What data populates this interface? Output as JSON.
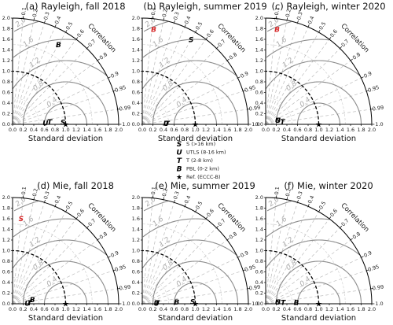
{
  "chart_data": [
    {
      "type": "taylor",
      "title": "(a) Rayleigh, fall 2018",
      "xlabel": "Standard deviation",
      "corr_label": "Correlation",
      "points": [
        {
          "marker": "S",
          "std": 0.95,
          "corr": 0.999,
          "color": "#000000"
        },
        {
          "marker": "T",
          "std": 0.7,
          "corr": 0.998,
          "color": "#000000"
        },
        {
          "marker": "U",
          "std": 0.62,
          "corr": 0.999,
          "color": "#000000"
        },
        {
          "marker": "B",
          "std": 1.73,
          "corr": 0.5,
          "color": "#000000"
        }
      ]
    },
    {
      "type": "taylor",
      "title": "(b) Rayleigh, summer 2019",
      "xlabel": "Standard deviation",
      "corr_label": "Correlation",
      "points": [
        {
          "marker": "S",
          "std": 1.84,
          "corr": 0.5,
          "color": "#000000"
        },
        {
          "marker": "T",
          "std": 0.47,
          "corr": 0.999,
          "color": "#000000"
        },
        {
          "marker": "U",
          "std": 0.45,
          "corr": 0.999,
          "color": "#000000"
        },
        {
          "marker": "B",
          "std": 1.8,
          "corr": 0.12,
          "color": "#d62728"
        }
      ]
    },
    {
      "type": "taylor",
      "title": "(c) Rayleigh, winter 2020",
      "xlabel": "Standard deviation",
      "corr_label": "Correlation",
      "points": [
        {
          "marker": "T",
          "std": 0.32,
          "corr": 0.99,
          "color": "#000000"
        },
        {
          "marker": "S",
          "std": 0.25,
          "corr": 0.95,
          "color": "#000000"
        },
        {
          "marker": "U",
          "std": 0.24,
          "corr": 0.95,
          "color": "#000000"
        },
        {
          "marker": "B",
          "std": 1.8,
          "corr": 0.12,
          "color": "#d62728"
        }
      ]
    },
    {
      "type": "taylor",
      "title": "(d) Mie, fall 2018",
      "xlabel": "Standard deviation",
      "corr_label": "Correlation",
      "points": [
        {
          "marker": "S",
          "std": 1.61,
          "corr": 0.1,
          "color": "#d62728"
        },
        {
          "marker": "B",
          "std": 0.38,
          "corr": 0.98,
          "color": "#000000"
        },
        {
          "marker": "T",
          "std": 0.32,
          "corr": 0.998,
          "color": "#000000"
        },
        {
          "marker": "U",
          "std": 0.28,
          "corr": 0.999,
          "color": "#000000"
        }
      ]
    },
    {
      "type": "taylor",
      "title": "(e) Mie, summer 2019",
      "xlabel": "Standard deviation",
      "corr_label": "Correlation",
      "points": [
        {
          "marker": "S",
          "std": 0.95,
          "corr": 0.999,
          "color": "#000000"
        },
        {
          "marker": "B",
          "std": 0.65,
          "corr": 0.999,
          "color": "#000000"
        },
        {
          "marker": "T",
          "std": 0.28,
          "corr": 0.998,
          "color": "#000000"
        },
        {
          "marker": "U",
          "std": 0.27,
          "corr": 0.999,
          "color": "#000000"
        }
      ]
    },
    {
      "type": "taylor",
      "title": "(f) Mie, winter 2020",
      "xlabel": "Standard deviation",
      "corr_label": "Correlation",
      "points": [
        {
          "marker": "B",
          "std": 0.58,
          "corr": 0.999,
          "color": "#000000"
        },
        {
          "marker": "T",
          "std": 0.33,
          "corr": 0.997,
          "color": "#000000"
        },
        {
          "marker": "S",
          "std": 0.24,
          "corr": 0.99,
          "color": "#000000"
        },
        {
          "marker": "U",
          "std": 0.23,
          "corr": 0.99,
          "color": "#000000"
        }
      ]
    }
  ],
  "axis": {
    "std_max": 2.0,
    "std_ticks": [
      "0.0",
      "0.2",
      "0.4",
      "0.6",
      "0.8",
      "1.0",
      "1.2",
      "1.4",
      "1.6",
      "1.8",
      "2.0"
    ],
    "corr_ticks": [
      0.1,
      0.2,
      0.3,
      0.4,
      0.5,
      0.6,
      0.7,
      0.8,
      0.9,
      0.95,
      0.99,
      1.0
    ],
    "corr_tick_labels": [
      "0.1",
      "0.2",
      "0.3",
      "0.4",
      "0.5",
      "0.6",
      "0.7",
      "0.8",
      "0.9",
      "0.95",
      "0.99",
      "1.0"
    ],
    "rms_levels": [
      0.4,
      0.8,
      1.2,
      1.6,
      2.0
    ],
    "rms_labels": [
      "0.4",
      "0.8",
      "1.2",
      "1.6",
      "2.0"
    ],
    "ref_std": 1.0
  },
  "legend": {
    "items": [
      {
        "marker": "S",
        "label": "S (>16 km)"
      },
      {
        "marker": "U",
        "label": "UTLS (8-16 km)"
      },
      {
        "marker": "T",
        "label": "T (2-8 km)"
      },
      {
        "marker": "B",
        "label": "PBL (0-2 km)"
      },
      {
        "marker": "★",
        "label": "Ref. (ECCC-B)"
      }
    ]
  }
}
